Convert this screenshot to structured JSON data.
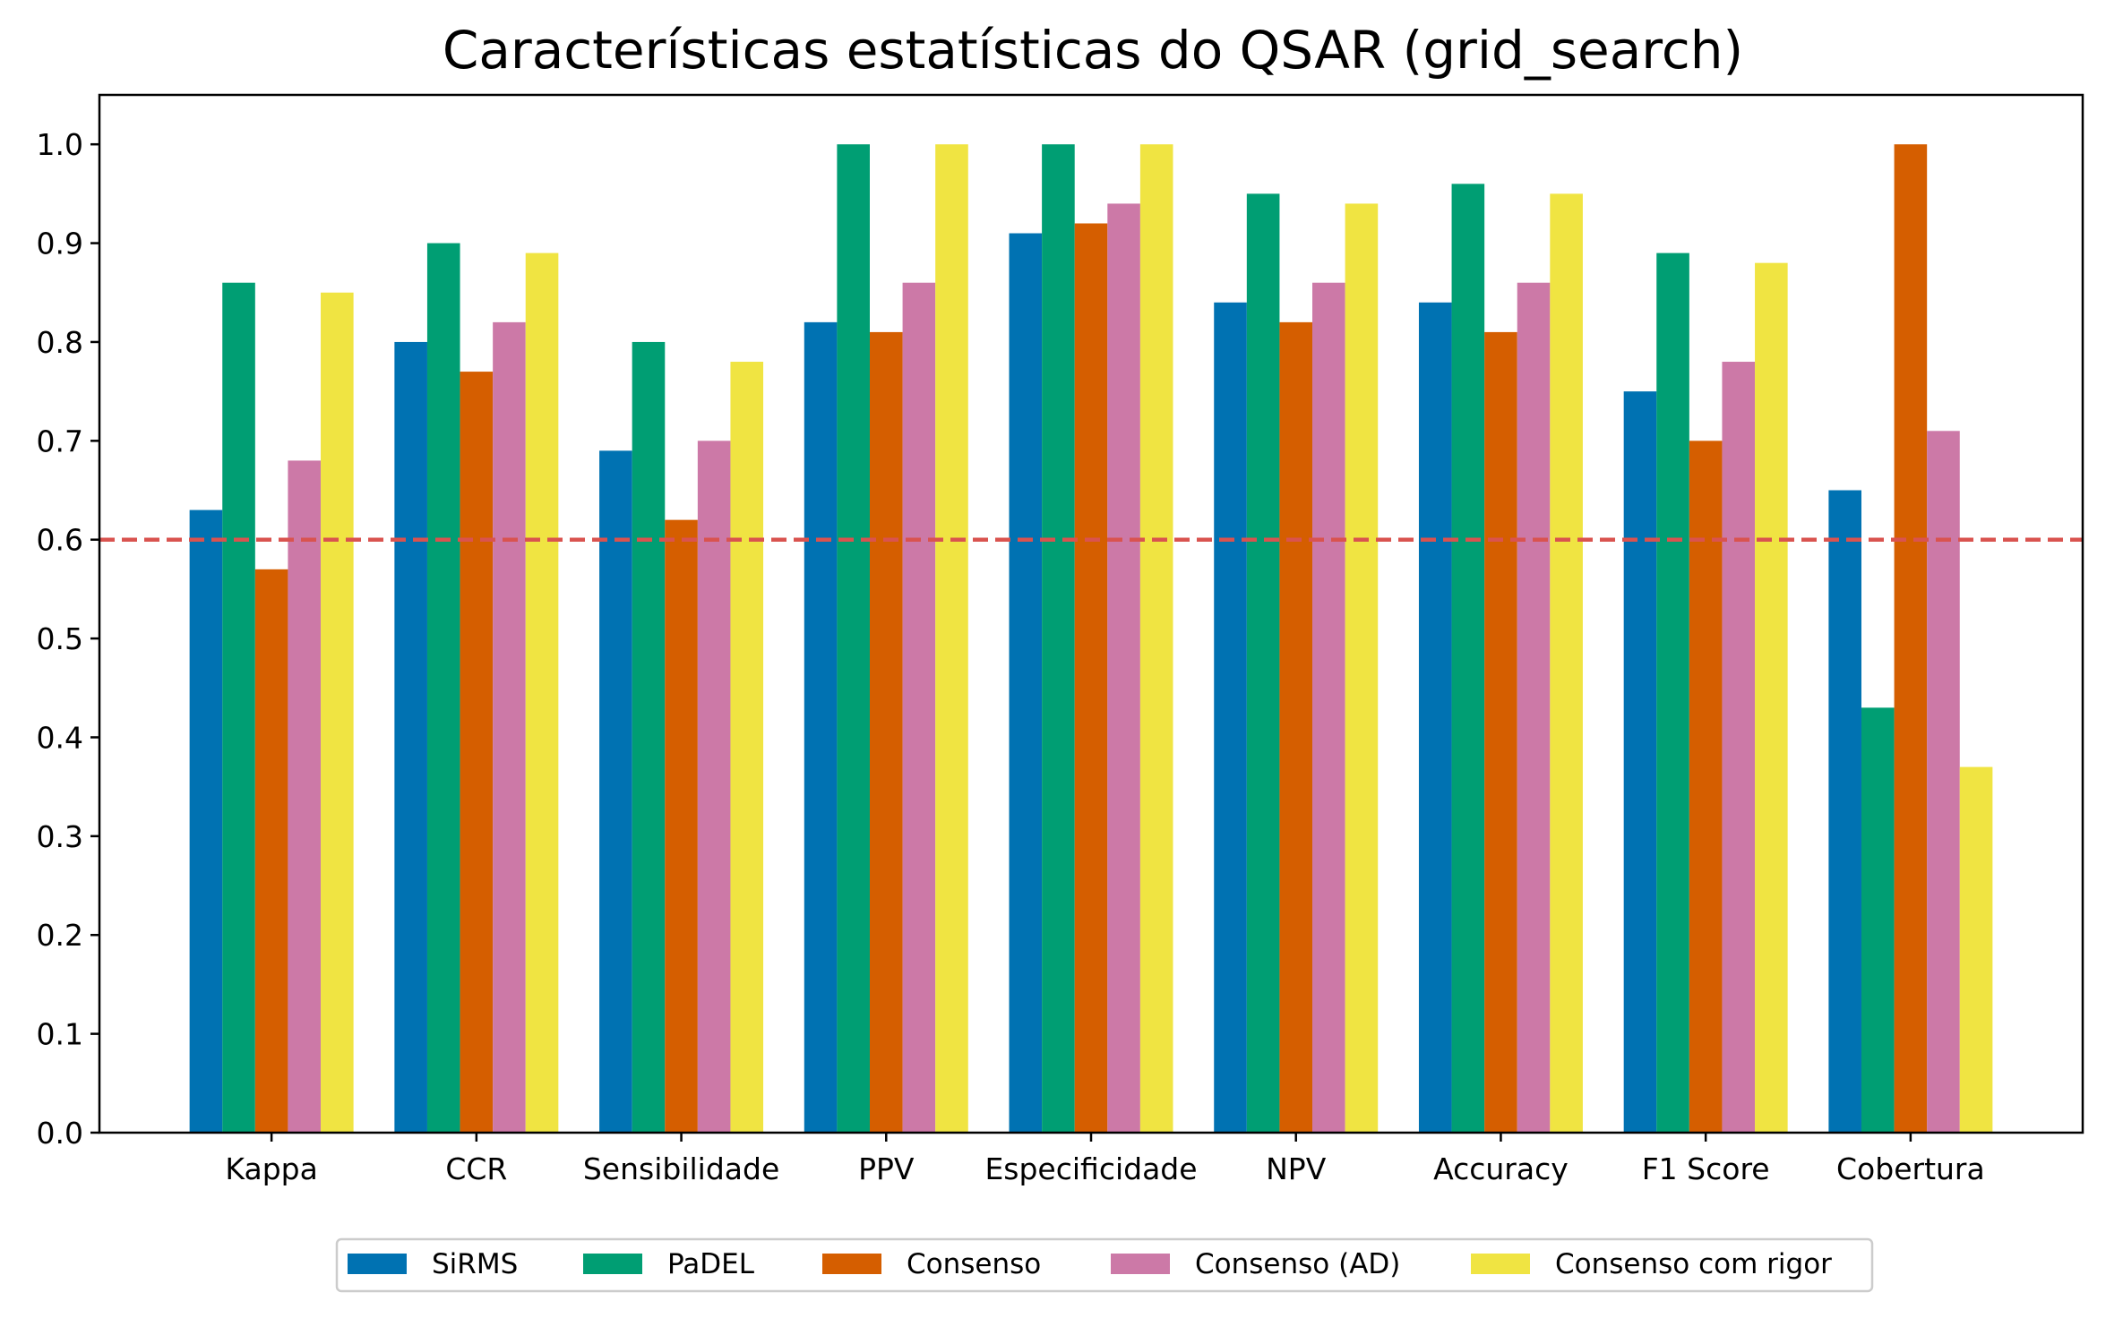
{
  "chart_data": {
    "type": "bar",
    "title": "Características estatísticas do QSAR (grid_search)",
    "xlabel": "",
    "ylabel": "",
    "ylim": [
      0,
      1.05
    ],
    "yticks": [
      0.0,
      0.1,
      0.2,
      0.3,
      0.4,
      0.5,
      0.6,
      0.7,
      0.8,
      0.9,
      1.0
    ],
    "ytick_labels": [
      "0.0",
      "0.1",
      "0.2",
      "0.3",
      "0.4",
      "0.5",
      "0.6",
      "0.7",
      "0.8",
      "0.9",
      "1.0"
    ],
    "grid": false,
    "legend_position": "bottom-center",
    "categories": [
      "Kappa",
      "CCR",
      "Sensibilidade",
      "PPV",
      "Especificidade",
      "NPV",
      "Accuracy",
      "F1 Score",
      "Cobertura"
    ],
    "series": [
      {
        "name": "SiRMS",
        "color": "#0072b2",
        "values": [
          0.63,
          0.8,
          0.69,
          0.82,
          0.91,
          0.84,
          0.84,
          0.75,
          0.65
        ]
      },
      {
        "name": "PaDEL",
        "color": "#009e73",
        "values": [
          0.86,
          0.9,
          0.8,
          1.0,
          1.0,
          0.95,
          0.96,
          0.89,
          0.43
        ]
      },
      {
        "name": "Consenso",
        "color": "#d55e00",
        "values": [
          0.57,
          0.77,
          0.62,
          0.81,
          0.92,
          0.82,
          0.81,
          0.7,
          1.0
        ]
      },
      {
        "name": "Consenso (AD)",
        "color": "#cc79a7",
        "values": [
          0.68,
          0.82,
          0.7,
          0.86,
          0.94,
          0.86,
          0.86,
          0.78,
          0.71
        ]
      },
      {
        "name": "Consenso com rigor",
        "color": "#f0e442",
        "values": [
          0.85,
          0.89,
          0.78,
          1.0,
          1.0,
          0.94,
          0.95,
          0.88,
          0.37
        ]
      }
    ],
    "reference_line": {
      "value": 0.6,
      "style": "dashed",
      "color": "#d9534f"
    }
  }
}
